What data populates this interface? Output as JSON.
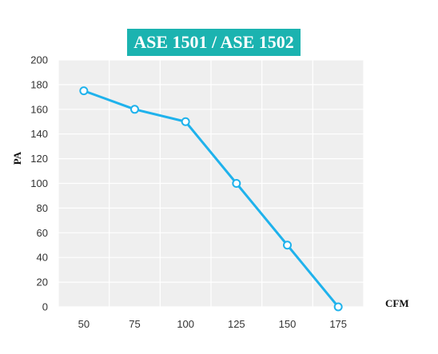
{
  "chart_data": {
    "type": "line",
    "title": "ASE 1501 / ASE 1502",
    "xlabel": "CFM",
    "ylabel": "PA",
    "x": [
      50,
      75,
      100,
      125,
      150,
      175
    ],
    "x_tick_labels": [
      "50",
      "75",
      "100",
      "125",
      "150",
      "175"
    ],
    "y_tick_labels": [
      "0",
      "20",
      "40",
      "60",
      "80",
      "100",
      "120",
      "140",
      "160",
      "180",
      "200"
    ],
    "ylim": [
      0,
      200
    ],
    "grid": true,
    "series": [
      {
        "values": [
          175,
          160,
          150,
          100,
          50,
          0
        ]
      }
    ],
    "colors": {
      "line": "#1fb2ec",
      "plot_background": "#efefef",
      "grid": "#ffffff",
      "title_background": "#1bb3b0"
    }
  }
}
